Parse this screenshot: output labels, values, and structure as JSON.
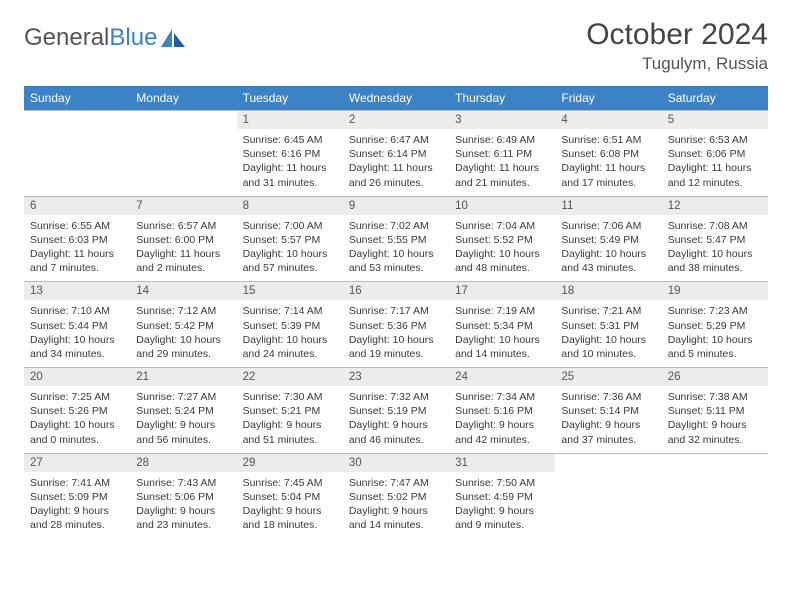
{
  "brand": {
    "part1": "General",
    "part2": "Blue"
  },
  "title": "October 2024",
  "location": "Tugulym, Russia",
  "colors": {
    "header_bg": "#3b82c7",
    "header_text": "#ffffff",
    "daynum_bg": "#ececec",
    "border": "#bcbcbc",
    "text": "#3a3a3a"
  },
  "weekdays": [
    "Sunday",
    "Monday",
    "Tuesday",
    "Wednesday",
    "Thursday",
    "Friday",
    "Saturday"
  ],
  "weeks": [
    [
      null,
      null,
      {
        "n": "1",
        "sunrise": "6:45 AM",
        "sunset": "6:16 PM",
        "daylight": "11 hours and 31 minutes."
      },
      {
        "n": "2",
        "sunrise": "6:47 AM",
        "sunset": "6:14 PM",
        "daylight": "11 hours and 26 minutes."
      },
      {
        "n": "3",
        "sunrise": "6:49 AM",
        "sunset": "6:11 PM",
        "daylight": "11 hours and 21 minutes."
      },
      {
        "n": "4",
        "sunrise": "6:51 AM",
        "sunset": "6:08 PM",
        "daylight": "11 hours and 17 minutes."
      },
      {
        "n": "5",
        "sunrise": "6:53 AM",
        "sunset": "6:06 PM",
        "daylight": "11 hours and 12 minutes."
      }
    ],
    [
      {
        "n": "6",
        "sunrise": "6:55 AM",
        "sunset": "6:03 PM",
        "daylight": "11 hours and 7 minutes."
      },
      {
        "n": "7",
        "sunrise": "6:57 AM",
        "sunset": "6:00 PM",
        "daylight": "11 hours and 2 minutes."
      },
      {
        "n": "8",
        "sunrise": "7:00 AM",
        "sunset": "5:57 PM",
        "daylight": "10 hours and 57 minutes."
      },
      {
        "n": "9",
        "sunrise": "7:02 AM",
        "sunset": "5:55 PM",
        "daylight": "10 hours and 53 minutes."
      },
      {
        "n": "10",
        "sunrise": "7:04 AM",
        "sunset": "5:52 PM",
        "daylight": "10 hours and 48 minutes."
      },
      {
        "n": "11",
        "sunrise": "7:06 AM",
        "sunset": "5:49 PM",
        "daylight": "10 hours and 43 minutes."
      },
      {
        "n": "12",
        "sunrise": "7:08 AM",
        "sunset": "5:47 PM",
        "daylight": "10 hours and 38 minutes."
      }
    ],
    [
      {
        "n": "13",
        "sunrise": "7:10 AM",
        "sunset": "5:44 PM",
        "daylight": "10 hours and 34 minutes."
      },
      {
        "n": "14",
        "sunrise": "7:12 AM",
        "sunset": "5:42 PM",
        "daylight": "10 hours and 29 minutes."
      },
      {
        "n": "15",
        "sunrise": "7:14 AM",
        "sunset": "5:39 PM",
        "daylight": "10 hours and 24 minutes."
      },
      {
        "n": "16",
        "sunrise": "7:17 AM",
        "sunset": "5:36 PM",
        "daylight": "10 hours and 19 minutes."
      },
      {
        "n": "17",
        "sunrise": "7:19 AM",
        "sunset": "5:34 PM",
        "daylight": "10 hours and 14 minutes."
      },
      {
        "n": "18",
        "sunrise": "7:21 AM",
        "sunset": "5:31 PM",
        "daylight": "10 hours and 10 minutes."
      },
      {
        "n": "19",
        "sunrise": "7:23 AM",
        "sunset": "5:29 PM",
        "daylight": "10 hours and 5 minutes."
      }
    ],
    [
      {
        "n": "20",
        "sunrise": "7:25 AM",
        "sunset": "5:26 PM",
        "daylight": "10 hours and 0 minutes."
      },
      {
        "n": "21",
        "sunrise": "7:27 AM",
        "sunset": "5:24 PM",
        "daylight": "9 hours and 56 minutes."
      },
      {
        "n": "22",
        "sunrise": "7:30 AM",
        "sunset": "5:21 PM",
        "daylight": "9 hours and 51 minutes."
      },
      {
        "n": "23",
        "sunrise": "7:32 AM",
        "sunset": "5:19 PM",
        "daylight": "9 hours and 46 minutes."
      },
      {
        "n": "24",
        "sunrise": "7:34 AM",
        "sunset": "5:16 PM",
        "daylight": "9 hours and 42 minutes."
      },
      {
        "n": "25",
        "sunrise": "7:36 AM",
        "sunset": "5:14 PM",
        "daylight": "9 hours and 37 minutes."
      },
      {
        "n": "26",
        "sunrise": "7:38 AM",
        "sunset": "5:11 PM",
        "daylight": "9 hours and 32 minutes."
      }
    ],
    [
      {
        "n": "27",
        "sunrise": "7:41 AM",
        "sunset": "5:09 PM",
        "daylight": "9 hours and 28 minutes."
      },
      {
        "n": "28",
        "sunrise": "7:43 AM",
        "sunset": "5:06 PM",
        "daylight": "9 hours and 23 minutes."
      },
      {
        "n": "29",
        "sunrise": "7:45 AM",
        "sunset": "5:04 PM",
        "daylight": "9 hours and 18 minutes."
      },
      {
        "n": "30",
        "sunrise": "7:47 AM",
        "sunset": "5:02 PM",
        "daylight": "9 hours and 14 minutes."
      },
      {
        "n": "31",
        "sunrise": "7:50 AM",
        "sunset": "4:59 PM",
        "daylight": "9 hours and 9 minutes."
      },
      null,
      null
    ]
  ]
}
